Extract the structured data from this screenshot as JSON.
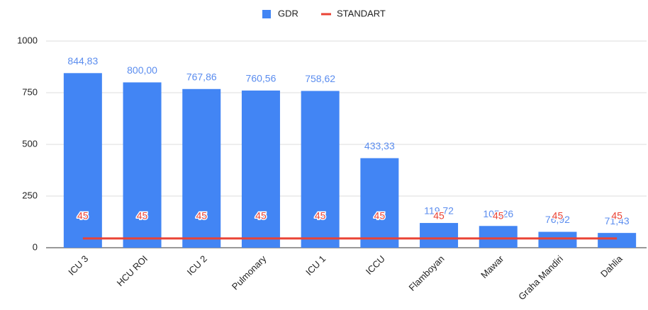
{
  "chart_data": {
    "type": "bar",
    "categories": [
      "ICU 3",
      "HCU ROI",
      "ICU 2",
      "Pulmonary",
      "ICU 1",
      "ICCU",
      "Flamboyan",
      "Mawar",
      "Graha Mandiri",
      "Dahlia"
    ],
    "series": [
      {
        "name": "GDR",
        "type": "bar",
        "color": "#4285f4",
        "values": [
          844.83,
          800.0,
          767.86,
          760.56,
          758.62,
          433.33,
          119.72,
          105.26,
          76.92,
          71.43
        ],
        "value_labels": [
          "844,83",
          "800,00",
          "767,86",
          "760,56",
          "758,62",
          "433,33",
          "119,72",
          "105,26",
          "76,92",
          "71,43"
        ]
      },
      {
        "name": "STANDART",
        "type": "line",
        "color": "#ea4335",
        "values": [
          45,
          45,
          45,
          45,
          45,
          45,
          45,
          45,
          45,
          45
        ]
      }
    ],
    "ylim": [
      0,
      1000
    ],
    "yticks": [
      0,
      250,
      500,
      750,
      1000
    ],
    "grid": true,
    "legend": "top"
  }
}
